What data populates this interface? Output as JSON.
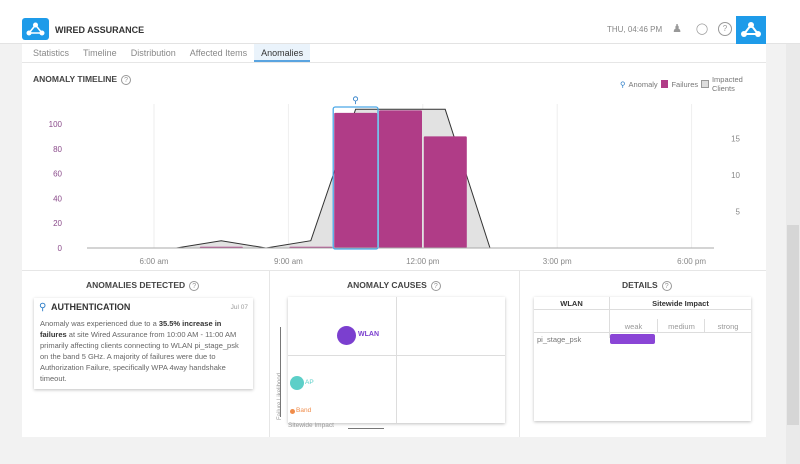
{
  "header": {
    "title": "WIRED ASSURANCE",
    "datetime": "THU, 04:46 PM",
    "icons": [
      "user-icon",
      "lightbulb-icon",
      "help-icon",
      "network-icon"
    ]
  },
  "tabs": [
    {
      "label": "Statistics"
    },
    {
      "label": "Timeline"
    },
    {
      "label": "Distribution"
    },
    {
      "label": "Affected Items"
    },
    {
      "label": "Anomalies",
      "active": true
    }
  ],
  "timeline": {
    "title": "ANOMALY TIMELINE",
    "legend": {
      "anomaly": "Anomaly",
      "failures": "Failures",
      "clients": "Impacted Clients"
    }
  },
  "chart_data": {
    "type": "bar+area",
    "title": "ANOMALY TIMELINE",
    "x_ticks": [
      "6:00 am",
      "9:00 am",
      "12:00 pm",
      "3:00 pm",
      "6:00 pm"
    ],
    "y_left_ticks": [
      "0",
      "20",
      "40",
      "60",
      "80",
      "100"
    ],
    "y_left_range": [
      0,
      110
    ],
    "y_right_ticks": [
      "5",
      "10",
      "15"
    ],
    "y_right_range": [
      0,
      19
    ],
    "failures": {
      "name": "Failures",
      "color": "#b03c87",
      "hours": [
        "7:00 am",
        "9:00 am",
        "10:00 am",
        "11:00 am",
        "12:00 pm"
      ],
      "values": [
        1,
        1,
        109,
        111,
        90
      ]
    },
    "impacted_clients": {
      "name": "Impacted Clients",
      "times": [
        "6:30 am",
        "7:30 am",
        "8:30 am",
        "9:30 am",
        "10:30 am",
        "11:30 am",
        "12:30 pm",
        "1:30 pm"
      ],
      "values": [
        0,
        1,
        0,
        1,
        19,
        19,
        19,
        0
      ]
    },
    "anomaly": {
      "name": "Anomaly",
      "start": "10:00 am",
      "end": "11:00 am"
    },
    "grid": true,
    "legend_position": "top-right"
  },
  "detected": {
    "title": "ANOMALIES DETECTED",
    "card": {
      "title": "AUTHENTICATION",
      "date": "Jul 07",
      "text1": "Anomaly was experienced due to a ",
      "bold1": "35.5% increase in failures",
      "text2": " at site Wired Assurance from 10:00 AM - 11:00 AM primarily affecting  clients connecting to WLAN pi_stage_psk on the band 5 GHz. A majority of failures were due to Authorization Failure, specifically WPA 4way handshake timeout."
    }
  },
  "causes": {
    "title": "ANOMALY CAUSES",
    "y_label": "Failure Likelihood",
    "x_label": "Sitewide Impact",
    "items": [
      {
        "label": "WLAN",
        "color": "#7b3fcf"
      },
      {
        "label": "AP",
        "color": "#5ccfc8"
      },
      {
        "label": "Band",
        "color": "#f08c4a"
      }
    ]
  },
  "details": {
    "title": "DETAILS",
    "col1": "WLAN",
    "col2": "Sitewide Impact",
    "levels": [
      "weak",
      "medium",
      "strong"
    ],
    "rows": [
      {
        "wlan": "pi_stage_psk",
        "impact": "weak",
        "color": "#8a45d6"
      }
    ]
  }
}
